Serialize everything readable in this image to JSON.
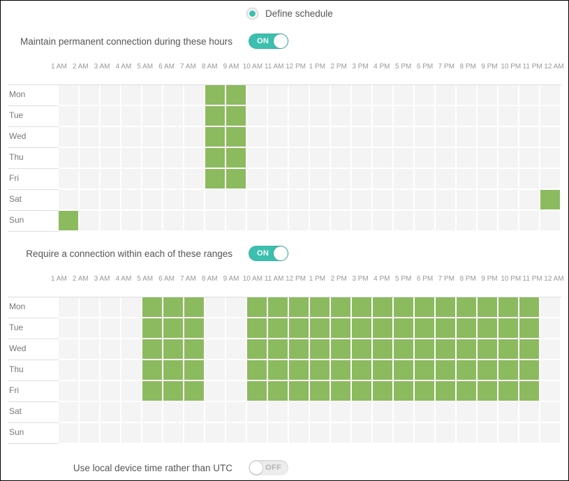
{
  "radio": {
    "label": "Define schedule",
    "selected": true
  },
  "hours": [
    "1 AM",
    "2 AM",
    "3 AM",
    "4 AM",
    "5 AM",
    "6 AM",
    "7 AM",
    "8 AM",
    "9 AM",
    "10 AM",
    "11 AM",
    "12 PM",
    "1 PM",
    "2 PM",
    "3 PM",
    "4 PM",
    "5 PM",
    "6 PM",
    "7 PM",
    "8 PM",
    "9 PM",
    "10 PM",
    "11 PM",
    "12 AM"
  ],
  "days": [
    "Mon",
    "Tue",
    "Wed",
    "Thu",
    "Fri",
    "Sat",
    "Sun"
  ],
  "sections": [
    {
      "label": "Maintain permanent connection during these hours",
      "toggle": "ON",
      "toggle_state": "on",
      "selected": {
        "Mon": [
          7,
          8
        ],
        "Tue": [
          7,
          8
        ],
        "Wed": [
          7,
          8
        ],
        "Thu": [
          7,
          8
        ],
        "Fri": [
          7,
          8
        ],
        "Sat": [
          23
        ],
        "Sun": [
          0
        ]
      }
    },
    {
      "label": "Require a connection within each of these ranges",
      "toggle": "ON",
      "toggle_state": "on",
      "selected": {
        "Mon": [
          4,
          5,
          6,
          9,
          10,
          11,
          12,
          13,
          14,
          15,
          16,
          17,
          18,
          19,
          20,
          21,
          22
        ],
        "Tue": [
          4,
          5,
          6,
          9,
          10,
          11,
          12,
          13,
          14,
          15,
          16,
          17,
          18,
          19,
          20,
          21,
          22
        ],
        "Wed": [
          4,
          5,
          6,
          9,
          10,
          11,
          12,
          13,
          14,
          15,
          16,
          17,
          18,
          19,
          20,
          21,
          22
        ],
        "Thu": [
          4,
          5,
          6,
          9,
          10,
          11,
          12,
          13,
          14,
          15,
          16,
          17,
          18,
          19,
          20,
          21,
          22
        ],
        "Fri": [
          4,
          5,
          6,
          9,
          10,
          11,
          12,
          13,
          14,
          15,
          16,
          17,
          18,
          19,
          20,
          21,
          22
        ],
        "Sat": [],
        "Sun": []
      }
    }
  ],
  "utc_row": {
    "label": "Use local device time rather than UTC",
    "toggle": "OFF",
    "toggle_state": "off"
  },
  "colors": {
    "accent_teal": "#3CBFAE",
    "cell_green": "#8CBA5E",
    "cell_gray": "#F4F4F4",
    "line_gray": "#DDDDDD"
  }
}
